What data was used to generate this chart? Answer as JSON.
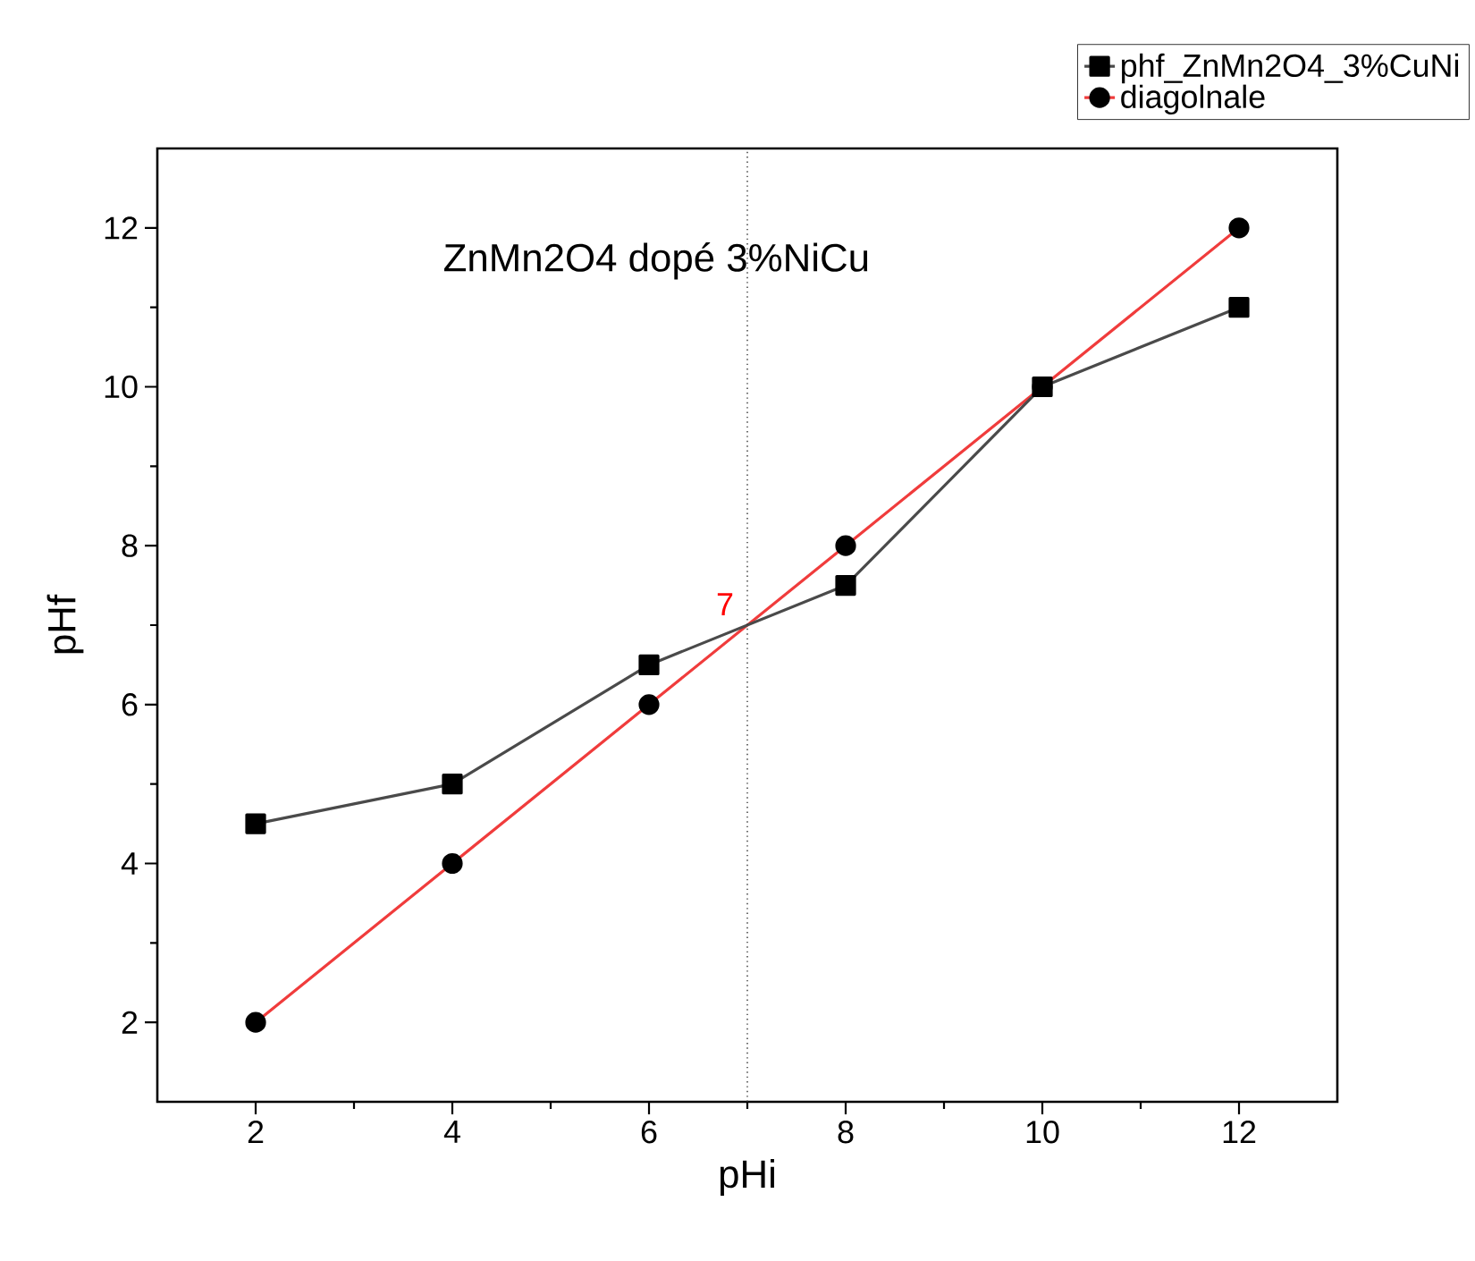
{
  "chart_data": {
    "type": "line",
    "xlabel": "pHi",
    "ylabel": "pHf",
    "x": [
      2,
      4,
      6,
      8,
      10,
      12
    ],
    "series": [
      {
        "name": "phf_ZnMn2O4_3%CuNi",
        "color": "#4a4a4a",
        "marker": "square",
        "values": [
          4.5,
          5,
          6.5,
          7.5,
          10,
          11
        ]
      },
      {
        "name": "diagolnale",
        "color": "#f03c3c",
        "marker": "circle",
        "values": [
          2,
          4,
          6,
          8,
          10,
          12
        ]
      }
    ],
    "xlim": [
      1,
      13
    ],
    "ylim": [
      1,
      13
    ],
    "xticks": [
      2,
      4,
      6,
      8,
      10,
      12
    ],
    "yticks": [
      2,
      4,
      6,
      8,
      10,
      12
    ],
    "grid": false,
    "legend": "top right",
    "line_style": "solid",
    "ref_lines": [
      {
        "axis": "x",
        "value": 7,
        "line_style": "dotted",
        "color": "#333333"
      }
    ],
    "annotations": [
      "ZnMn2O4 dopé 3%NiCu",
      {
        "text": "7",
        "x": 7,
        "y": 7
      }
    ]
  }
}
